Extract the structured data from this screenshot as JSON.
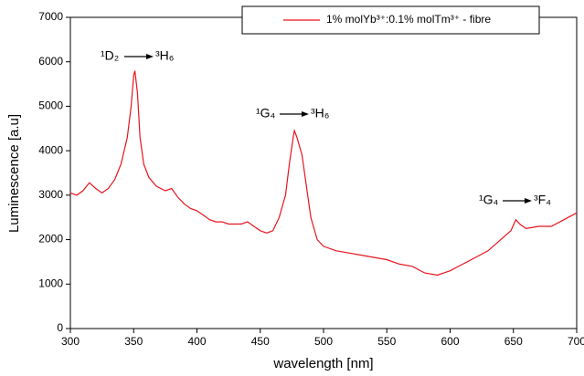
{
  "chart_data": {
    "type": "line",
    "xlabel": "wavelength [nm]",
    "ylabel": "Luminescence [a.u]",
    "xlim": [
      300,
      700
    ],
    "xticks": [
      300,
      350,
      400,
      450,
      500,
      550,
      600,
      650,
      700
    ],
    "ylim": [
      0,
      7000
    ],
    "yticks": [
      0,
      1000,
      2000,
      3000,
      4000,
      5000,
      6000,
      7000
    ],
    "legend": "top-right",
    "annotations": [
      {
        "from": "¹D₂",
        "to": "³H₆"
      },
      {
        "from": "¹G₄",
        "to": "³H₆"
      },
      {
        "from": "¹G₄",
        "to": "³F₄"
      }
    ],
    "x": [
      300,
      305,
      310,
      315,
      320,
      325,
      330,
      335,
      340,
      345,
      348,
      350,
      351,
      353,
      355,
      358,
      362,
      368,
      375,
      380,
      385,
      390,
      395,
      400,
      405,
      410,
      415,
      420,
      425,
      430,
      435,
      440,
      445,
      450,
      455,
      460,
      465,
      470,
      473,
      476,
      477,
      479,
      481,
      483,
      486,
      490,
      495,
      500,
      510,
      520,
      530,
      540,
      550,
      560,
      570,
      580,
      590,
      595,
      600,
      610,
      620,
      630,
      640,
      648,
      652,
      655,
      660,
      670,
      680,
      690,
      700
    ],
    "series": [
      {
        "name": "1% molYb³⁺:0.1% molTm³⁺ - fibre",
        "color": "#e8141e",
        "values": [
          3050,
          3000,
          3100,
          3280,
          3150,
          3050,
          3150,
          3350,
          3700,
          4300,
          5000,
          5700,
          5800,
          5300,
          4300,
          3700,
          3400,
          3200,
          3100,
          3150,
          2950,
          2800,
          2700,
          2650,
          2550,
          2450,
          2400,
          2400,
          2350,
          2350,
          2350,
          2400,
          2300,
          2200,
          2150,
          2200,
          2500,
          3000,
          3700,
          4300,
          4450,
          4300,
          4100,
          3900,
          3300,
          2500,
          2000,
          1850,
          1750,
          1700,
          1650,
          1600,
          1550,
          1450,
          1400,
          1250,
          1200,
          1250,
          1300,
          1450,
          1600,
          1750,
          2000,
          2200,
          2450,
          2350,
          2250,
          2300,
          2300,
          2450,
          2600
        ]
      }
    ]
  }
}
